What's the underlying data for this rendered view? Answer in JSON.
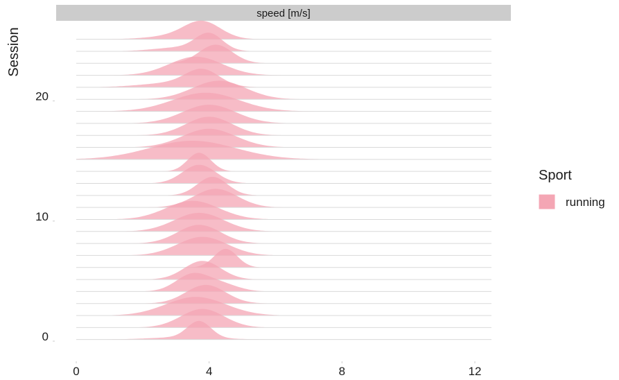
{
  "chart_data": {
    "type": "ridgeline",
    "facet_label": "speed [m/s]",
    "ylabel": "Session",
    "xlim": [
      0,
      12.5
    ],
    "ylim": [
      0,
      28
    ],
    "x_ticks": [
      0,
      4,
      8,
      12
    ],
    "y_ticks": [
      0,
      10,
      20
    ],
    "legend": {
      "title": "Sport",
      "entries": [
        {
          "label": "running",
          "color": "#f4a6b4"
        }
      ]
    },
    "fill_color": "#f4a6b4",
    "baseline_color": "#d9d9d9",
    "sessions": [
      {
        "session": 1,
        "components": [
          {
            "mean": 3.7,
            "sd": 0.35,
            "weight": 1.0
          },
          {
            "mean": 3.3,
            "sd": 1.0,
            "weight": 0.15
          }
        ]
      },
      {
        "session": 2,
        "components": [
          {
            "mean": 3.8,
            "sd": 0.65,
            "weight": 1.0
          }
        ]
      },
      {
        "session": 3,
        "components": [
          {
            "mean": 3.6,
            "sd": 0.9,
            "weight": 1.0
          }
        ]
      },
      {
        "session": 4,
        "components": [
          {
            "mean": 3.9,
            "sd": 0.6,
            "weight": 1.0
          }
        ]
      },
      {
        "session": 5,
        "components": [
          {
            "mean": 3.5,
            "sd": 0.5,
            "weight": 1.0
          },
          {
            "mean": 4.4,
            "sd": 0.5,
            "weight": 0.4
          }
        ]
      },
      {
        "session": 6,
        "components": [
          {
            "mean": 3.8,
            "sd": 0.55,
            "weight": 1.0
          }
        ]
      },
      {
        "session": 7,
        "components": [
          {
            "mean": 4.5,
            "sd": 0.35,
            "weight": 1.0
          }
        ]
      },
      {
        "session": 8,
        "components": [
          {
            "mean": 3.8,
            "sd": 0.75,
            "weight": 1.0
          }
        ]
      },
      {
        "session": 9,
        "components": [
          {
            "mean": 3.7,
            "sd": 0.65,
            "weight": 1.0
          }
        ]
      },
      {
        "session": 10,
        "components": [
          {
            "mean": 3.7,
            "sd": 0.75,
            "weight": 1.0
          }
        ]
      },
      {
        "session": 11,
        "components": [
          {
            "mean": 3.5,
            "sd": 0.8,
            "weight": 1.0
          }
        ]
      },
      {
        "session": 12,
        "components": [
          {
            "mean": 4.2,
            "sd": 0.65,
            "weight": 1.0
          }
        ]
      },
      {
        "session": 13,
        "components": [
          {
            "mean": 4.1,
            "sd": 0.45,
            "weight": 1.0
          }
        ]
      },
      {
        "session": 14,
        "components": [
          {
            "mean": 3.7,
            "sd": 0.5,
            "weight": 1.0
          }
        ]
      },
      {
        "session": 15,
        "components": [
          {
            "mean": 3.7,
            "sd": 0.35,
            "weight": 1.0
          }
        ]
      },
      {
        "session": 16,
        "components": [
          {
            "mean": 3.5,
            "sd": 1.3,
            "weight": 1.0
          }
        ]
      },
      {
        "session": 17,
        "components": [
          {
            "mean": 4.0,
            "sd": 0.8,
            "weight": 1.0
          }
        ]
      },
      {
        "session": 18,
        "components": [
          {
            "mean": 4.0,
            "sd": 0.7,
            "weight": 1.0
          }
        ]
      },
      {
        "session": 19,
        "components": [
          {
            "mean": 4.0,
            "sd": 0.8,
            "weight": 1.0
          }
        ]
      },
      {
        "session": 20,
        "components": [
          {
            "mean": 3.9,
            "sd": 1.0,
            "weight": 1.0
          }
        ]
      },
      {
        "session": 21,
        "components": [
          {
            "mean": 4.3,
            "sd": 0.8,
            "weight": 1.0
          }
        ]
      },
      {
        "session": 22,
        "components": [
          {
            "mean": 3.8,
            "sd": 0.5,
            "weight": 1.0
          },
          {
            "mean": 3.0,
            "sd": 1.0,
            "weight": 0.3
          }
        ]
      },
      {
        "session": 23,
        "components": [
          {
            "mean": 3.6,
            "sd": 0.8,
            "weight": 1.0
          }
        ]
      },
      {
        "session": 24,
        "components": [
          {
            "mean": 4.2,
            "sd": 0.5,
            "weight": 1.0
          }
        ]
      },
      {
        "session": 25,
        "components": [
          {
            "mean": 4.0,
            "sd": 0.4,
            "weight": 1.0
          },
          {
            "mean": 3.2,
            "sd": 0.8,
            "weight": 0.25
          }
        ]
      },
      {
        "session": 26,
        "components": [
          {
            "mean": 3.8,
            "sd": 0.55,
            "weight": 1.0
          },
          {
            "mean": 3.0,
            "sd": 0.8,
            "weight": 0.2
          }
        ]
      }
    ]
  }
}
